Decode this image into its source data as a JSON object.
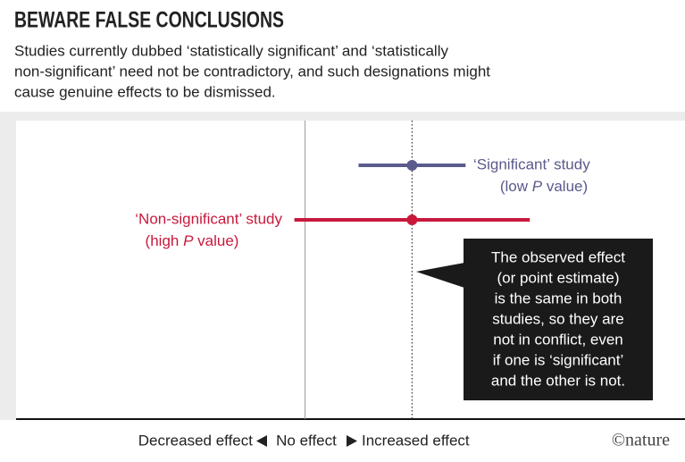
{
  "chart_data": {
    "type": "forest",
    "title": "BEWARE FALSE CONCLUSIONS",
    "subtitle": [
      "Studies currently dubbed ‘statistically significant’ and ‘statistically",
      "non-significant’ need not be contradictory, and such designations might",
      "cause genuine effects to be dismissed."
    ],
    "series": [
      {
        "name": "‘Significant’ study",
        "detail": [
          "(low ",
          "P",
          " value)"
        ],
        "color": "#5a5a8c",
        "estimate": 1,
        "low": 0.5,
        "high": 1.5
      },
      {
        "name": "‘Non-significant’ study",
        "detail": [
          "(high ",
          "P",
          " value)"
        ],
        "color": "#c8193c",
        "estimate": 1,
        "low": -0.1,
        "high": 2.1
      }
    ],
    "xlim": [
      -2.7,
      3.55
    ],
    "x_labels": [
      "Decreased effect",
      "No effect",
      "Increased effect"
    ],
    "annotation": [
      "The observed effect",
      "(or point estimate)",
      "is the same in both",
      "studies, so they are",
      "not in conflict, even",
      "if one is ‘significant’",
      "and the other is not."
    ],
    "credit": "©nature"
  }
}
